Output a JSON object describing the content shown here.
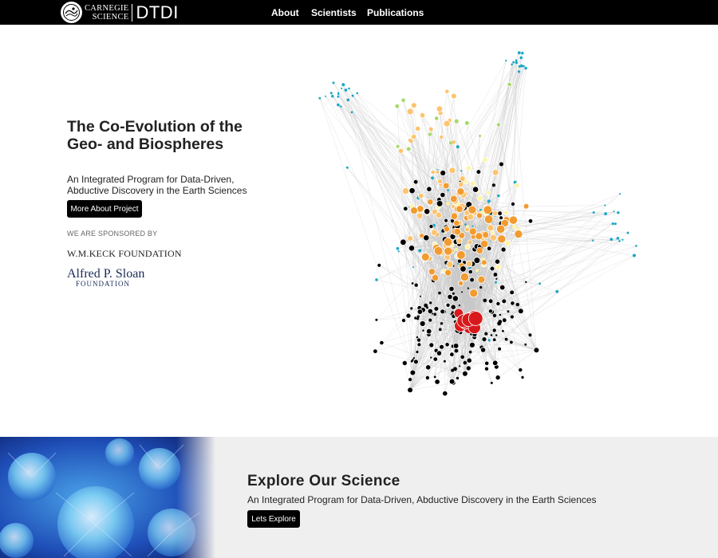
{
  "header": {
    "brand_line1": "CARNEGIE",
    "brand_line2": "SCIENCE",
    "brand_product": "DTDI",
    "nav": [
      {
        "label": "About"
      },
      {
        "label": "Scientists"
      },
      {
        "label": "Publications"
      }
    ]
  },
  "hero": {
    "title": "The Co-Evolution of the Geo- and Biospheres",
    "subtitle": "An Integrated Program for Data-Driven, Abductive Discovery in the Earth Sciences",
    "button_label": "More About Project",
    "sponsor_heading": "WE ARE SPONSORED BY",
    "sponsor_keck": "W.M.KECK FOUNDATION",
    "sponsor_sloan_line1": "Alfred P. Sloan",
    "sponsor_sloan_line2": "FOUNDATION"
  },
  "network_graph": {
    "node_colors": {
      "red": "#d7191c",
      "orange": "#f29b30",
      "light_orange": "#fdc46e",
      "pale_yellow": "#fff4a0",
      "light_green": "#a6d96a",
      "teal": "#1aa7c4",
      "black": "#000000"
    },
    "edge_color": "#c8c8c8"
  },
  "explore": {
    "title": "Explore Our Science",
    "subtitle": "An Integrated Program for Data-Driven, Abductive Discovery in the Earth Sciences",
    "button_label": "Lets Explore"
  },
  "colors": {
    "topbar": "#000000",
    "lower_background": "#efefef",
    "button": "#000000"
  }
}
